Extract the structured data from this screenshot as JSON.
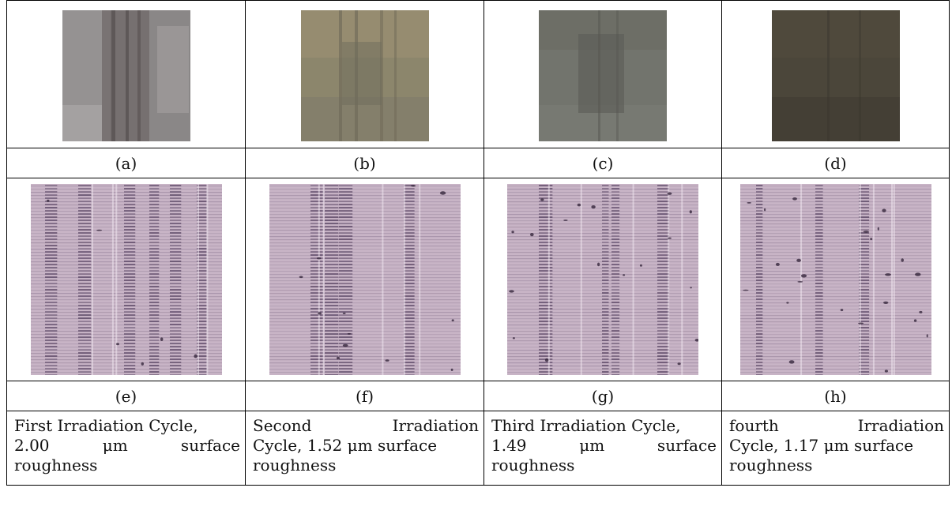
{
  "figure": {
    "top_labels": [
      "(a)",
      "(b)",
      "(c)",
      "(d)"
    ],
    "bottom_labels": [
      "(e)",
      "(f)",
      "(g)",
      "(h)"
    ],
    "captions": [
      [
        "First Irradiation Cycle,",
        "2.00 μm surface",
        "roughness"
      ],
      [
        "Second Irradiation",
        "Cycle, 1.52 μm surface",
        "roughness"
      ],
      [
        "Third Irradiation Cycle,",
        "1.49 μm surface",
        "roughness"
      ],
      [
        "fourth Irradiation",
        "Cycle, 1.17 μm surface",
        "roughness"
      ]
    ],
    "colors": {
      "macro_a": "#7d7a7a",
      "macro_b": "#8b8468",
      "macro_c": "#6f716b",
      "macro_d": "#4a4539",
      "micro_base": "#c8b4c6",
      "micro_dark": "#4a3656"
    }
  }
}
